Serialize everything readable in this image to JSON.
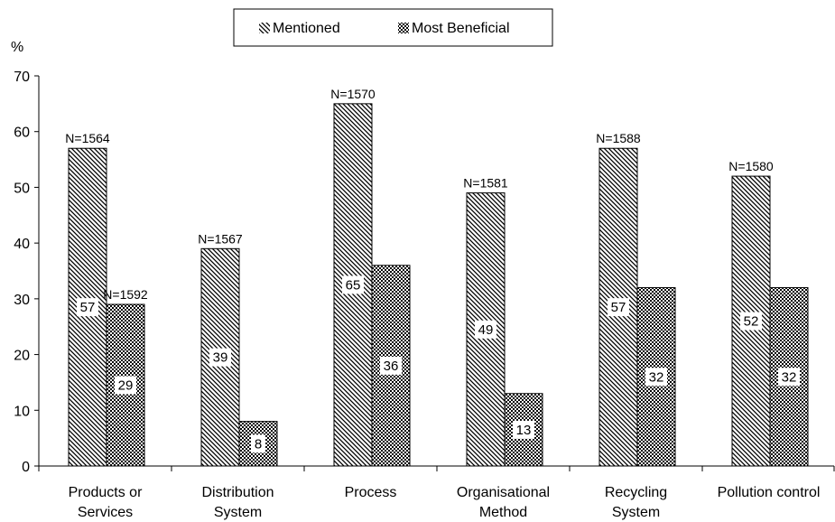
{
  "chart_data": {
    "type": "bar",
    "title": "",
    "xlabel": "",
    "ylabel": "%",
    "ylim": [
      0,
      70
    ],
    "yticks": [
      0,
      10,
      20,
      30,
      40,
      50,
      60,
      70
    ],
    "grid": false,
    "legend_position": "top-center",
    "categories": [
      [
        "Products or",
        "Services"
      ],
      [
        "Distribution",
        "System"
      ],
      [
        "Process"
      ],
      [
        "Organisational",
        "Method"
      ],
      [
        "Recycling",
        "System"
      ],
      [
        "Pollution control"
      ]
    ],
    "series": [
      {
        "name": "Mentioned",
        "pattern": "diagonal-hatch",
        "values": [
          57,
          39,
          65,
          49,
          57,
          52
        ],
        "value_labels": [
          "57",
          "39",
          "65",
          "49",
          "57",
          "52"
        ],
        "n_labels": [
          "N=1564",
          "N=1567",
          "N=1570",
          "N=1581",
          "N=1588",
          "N=1580"
        ]
      },
      {
        "name": "Most Beneficial",
        "pattern": "checkerboard",
        "values": [
          29,
          8,
          36,
          13,
          32,
          32
        ],
        "value_labels": [
          "29",
          "8",
          "36",
          "13",
          "32",
          "32"
        ],
        "n_labels": [
          "N=1592",
          "",
          "",
          "",
          "",
          ""
        ]
      }
    ]
  }
}
